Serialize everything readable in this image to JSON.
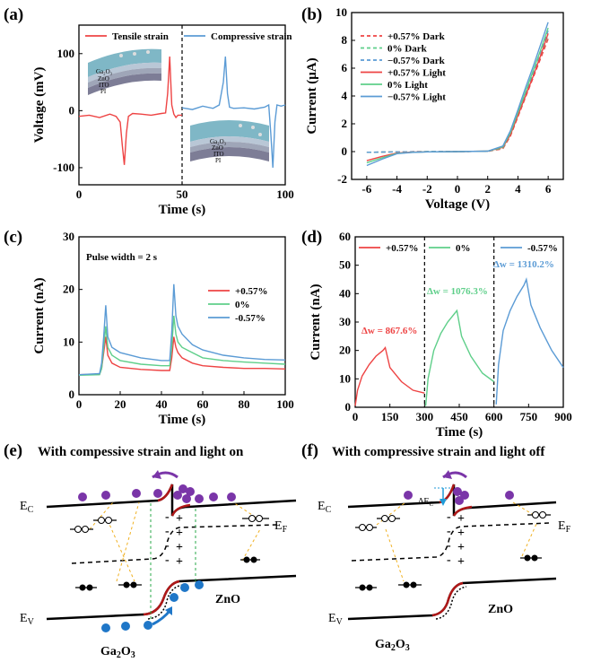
{
  "panels": {
    "a": {
      "label": "(a)"
    },
    "b": {
      "label": "(b)"
    },
    "c": {
      "label": "(c)"
    },
    "d": {
      "label": "(d)"
    },
    "e": {
      "label": "(e)",
      "title": "With compessive strain and light on"
    },
    "f": {
      "label": "(f)",
      "title": "With compressive strain and light off"
    }
  },
  "chart_data": [
    {
      "id": "a",
      "type": "line",
      "xlabel": "Time (s)",
      "ylabel": "Voltage (mV)",
      "xlim": [
        0,
        100
      ],
      "ylim": [
        -130,
        150
      ],
      "xticks": [
        0,
        50,
        100
      ],
      "yticks": [
        -100,
        0,
        100
      ],
      "divider_x": 50,
      "series": [
        {
          "name": "Tensile strain",
          "color": "#ee4444",
          "x": [
            0,
            5,
            10,
            15,
            18,
            20,
            21,
            22,
            23,
            24,
            26,
            30,
            35,
            40,
            42,
            43,
            44,
            45,
            46,
            47,
            48,
            50
          ],
          "y": [
            -10,
            -8,
            -12,
            -6,
            -10,
            -20,
            -60,
            -95,
            -40,
            -10,
            -5,
            -6,
            -8,
            -5,
            -4,
            30,
            95,
            10,
            -6,
            -12,
            -8,
            -8
          ]
        },
        {
          "name": "Compressive strain",
          "color": "#5b9bd5",
          "x": [
            50,
            55,
            60,
            65,
            68,
            70,
            71,
            72,
            73,
            75,
            80,
            85,
            90,
            92,
            93,
            94,
            95,
            96,
            98,
            100
          ],
          "y": [
            5,
            2,
            8,
            4,
            10,
            50,
            95,
            30,
            6,
            4,
            5,
            3,
            6,
            10,
            -40,
            -100,
            -20,
            10,
            8,
            10
          ]
        }
      ],
      "inset_labels": [
        "Ga₂O₃",
        "ZnO",
        "ITO",
        "PI"
      ]
    },
    {
      "id": "b",
      "type": "line",
      "xlabel": "Voltage (V)",
      "ylabel": "Current (μA)",
      "xlim": [
        -7,
        7
      ],
      "ylim": [
        -2,
        10
      ],
      "xticks": [
        -6,
        -4,
        -2,
        0,
        2,
        4,
        6
      ],
      "yticks": [
        -2,
        0,
        2,
        4,
        6,
        8,
        10
      ],
      "series": [
        {
          "name": "+0.57% Dark",
          "color": "#ee4444",
          "dash": true,
          "x": [
            -6,
            -5,
            -4,
            -2,
            0,
            2,
            3,
            3.5,
            4,
            4.5,
            5,
            5.5,
            6
          ],
          "y": [
            -0.05,
            -0.03,
            -0.02,
            0,
            0,
            0.02,
            0.2,
            1.1,
            2.5,
            3.9,
            5.3,
            6.7,
            8.1
          ]
        },
        {
          "name": "0% Dark",
          "color": "#5fcf8a",
          "dash": true,
          "x": [
            -6,
            -5,
            -4,
            -2,
            0,
            2,
            3,
            3.5,
            4,
            4.5,
            5,
            5.5,
            6
          ],
          "y": [
            -0.05,
            -0.03,
            -0.02,
            0,
            0,
            0.02,
            0.25,
            1.2,
            2.6,
            4.0,
            5.5,
            6.9,
            8.4
          ]
        },
        {
          "name": "−0.57% Dark",
          "color": "#5b9bd5",
          "dash": true,
          "x": [
            -6,
            -5,
            -4,
            -2,
            0,
            2,
            3,
            3.5,
            4,
            4.5,
            5,
            5.5,
            6
          ],
          "y": [
            -0.05,
            -0.03,
            -0.02,
            0,
            0,
            0.02,
            0.3,
            1.3,
            2.8,
            4.2,
            5.7,
            7.2,
            8.7
          ]
        },
        {
          "name": "+0.57% Light",
          "color": "#ee4444",
          "dash": false,
          "x": [
            -6,
            -5,
            -4,
            -3,
            -2,
            0,
            2,
            3,
            3.5,
            4,
            4.5,
            5,
            5.5,
            6
          ],
          "y": [
            -0.65,
            -0.35,
            -0.1,
            -0.04,
            -0.02,
            0,
            0.03,
            0.3,
            1.2,
            2.6,
            4.0,
            5.4,
            6.9,
            8.5
          ]
        },
        {
          "name": "0% Light",
          "color": "#5fcf8a",
          "dash": false,
          "x": [
            -6,
            -5,
            -4,
            -3,
            -2,
            0,
            2,
            3,
            3.5,
            4,
            4.5,
            5,
            5.5,
            6
          ],
          "y": [
            -0.8,
            -0.45,
            -0.12,
            -0.05,
            -0.02,
            0,
            0.03,
            0.35,
            1.35,
            2.8,
            4.3,
            5.8,
            7.3,
            8.9
          ]
        },
        {
          "name": "−0.57% Light",
          "color": "#5b9bd5",
          "dash": false,
          "x": [
            -6,
            -5,
            -4,
            -3,
            -2,
            0,
            2,
            3,
            3.5,
            4,
            4.5,
            5,
            5.5,
            6
          ],
          "y": [
            -1.0,
            -0.55,
            -0.15,
            -0.06,
            -0.02,
            0,
            0.03,
            0.4,
            1.5,
            3.0,
            4.6,
            6.1,
            7.7,
            9.3
          ]
        }
      ]
    },
    {
      "id": "c",
      "type": "line",
      "xlabel": "Time (s)",
      "ylabel": "Current (nA)",
      "xlim": [
        0,
        100
      ],
      "ylim": [
        0,
        30
      ],
      "xticks": [
        0,
        20,
        40,
        60,
        80,
        100
      ],
      "yticks": [
        0,
        10,
        20,
        30
      ],
      "annotation": "Pulse width = 2 s",
      "series": [
        {
          "name": "+0.57%",
          "color": "#ee4444",
          "x": [
            0,
            10,
            11,
            12,
            13,
            14,
            16,
            20,
            30,
            40,
            44,
            45,
            46,
            47,
            48,
            50,
            55,
            60,
            70,
            80,
            90,
            100
          ],
          "y": [
            3.8,
            3.9,
            5,
            8,
            11,
            7.5,
            6,
            5.2,
            4.8,
            4.6,
            4.6,
            7,
            11,
            9,
            8,
            7,
            6,
            5.5,
            5.2,
            5,
            5,
            4.9
          ]
        },
        {
          "name": "0%",
          "color": "#5fcf8a",
          "x": [
            0,
            10,
            11,
            12,
            13,
            14,
            16,
            20,
            30,
            40,
            44,
            45,
            46,
            47,
            48,
            50,
            55,
            60,
            70,
            80,
            90,
            100
          ],
          "y": [
            3.7,
            3.8,
            5,
            9,
            13,
            9,
            7.5,
            6.5,
            5.8,
            5.5,
            5.5,
            9,
            15,
            11.5,
            10,
            9,
            8,
            7,
            6.5,
            6.2,
            6,
            5.8
          ]
        },
        {
          "name": "-0.57%",
          "color": "#5b9bd5",
          "x": [
            0,
            10,
            11,
            12,
            13,
            14,
            16,
            20,
            30,
            40,
            44,
            45,
            46,
            47,
            48,
            50,
            55,
            60,
            70,
            80,
            90,
            100
          ],
          "y": [
            3.8,
            4,
            6,
            11,
            17,
            11,
            9,
            8,
            7,
            6.5,
            6.5,
            12,
            21,
            15,
            13,
            11.5,
            9.5,
            8.5,
            7.5,
            7,
            6.7,
            6.6
          ]
        }
      ]
    },
    {
      "id": "d",
      "type": "line",
      "xlabel": "Time (s)",
      "ylabel": "Current (nA)",
      "xlim": [
        0,
        900
      ],
      "ylim": [
        0,
        60
      ],
      "xticks": [
        0,
        150,
        300,
        450,
        600,
        750,
        900
      ],
      "yticks": [
        0,
        10,
        20,
        30,
        40,
        50,
        60
      ],
      "dividers_x": [
        300,
        600
      ],
      "series": [
        {
          "name": "+0.57%",
          "color": "#ee4444",
          "x": [
            0,
            10,
            30,
            60,
            90,
            120,
            130,
            150,
            200,
            250,
            300
          ],
          "y": [
            0.5,
            6,
            11,
            15,
            18,
            20,
            21,
            14,
            9,
            6,
            5
          ],
          "annotation": "Δw = 867.6%"
        },
        {
          "name": "0%",
          "color": "#5fcf8a",
          "x": [
            305,
            315,
            340,
            370,
            400,
            430,
            440,
            460,
            500,
            550,
            600
          ],
          "y": [
            0.5,
            10,
            20,
            26,
            30,
            33,
            34,
            25,
            18,
            12,
            9
          ],
          "annotation": "Δw = 1076.3%"
        },
        {
          "name": "-0.57%",
          "color": "#5b9bd5",
          "x": [
            610,
            620,
            640,
            670,
            700,
            730,
            740,
            760,
            800,
            850,
            900
          ],
          "y": [
            1,
            15,
            27,
            34,
            39,
            43,
            45,
            36,
            28,
            20,
            14
          ],
          "annotation": "Δw = 1310.2%"
        }
      ]
    }
  ],
  "band_diagrams": {
    "e": {
      "ec": "E",
      "ec_sub": "C",
      "ev": "E",
      "ev_sub": "V",
      "ef": "E",
      "ef_sub": "F",
      "material_left": "Ga",
      "material_left_sub1": "2",
      "material_left_mid": "O",
      "material_left_sub2": "3",
      "material_right": "ZnO"
    },
    "f": {
      "ec": "E",
      "ec_sub": "C",
      "ev": "E",
      "ev_sub": "V",
      "ef": "E",
      "ef_sub": "F",
      "material_left": "Ga",
      "material_left_sub1": "2",
      "material_left_mid": "O",
      "material_left_sub2": "3",
      "material_right": "ZnO",
      "delta": "ΔE",
      "delta_sub": "C"
    }
  }
}
